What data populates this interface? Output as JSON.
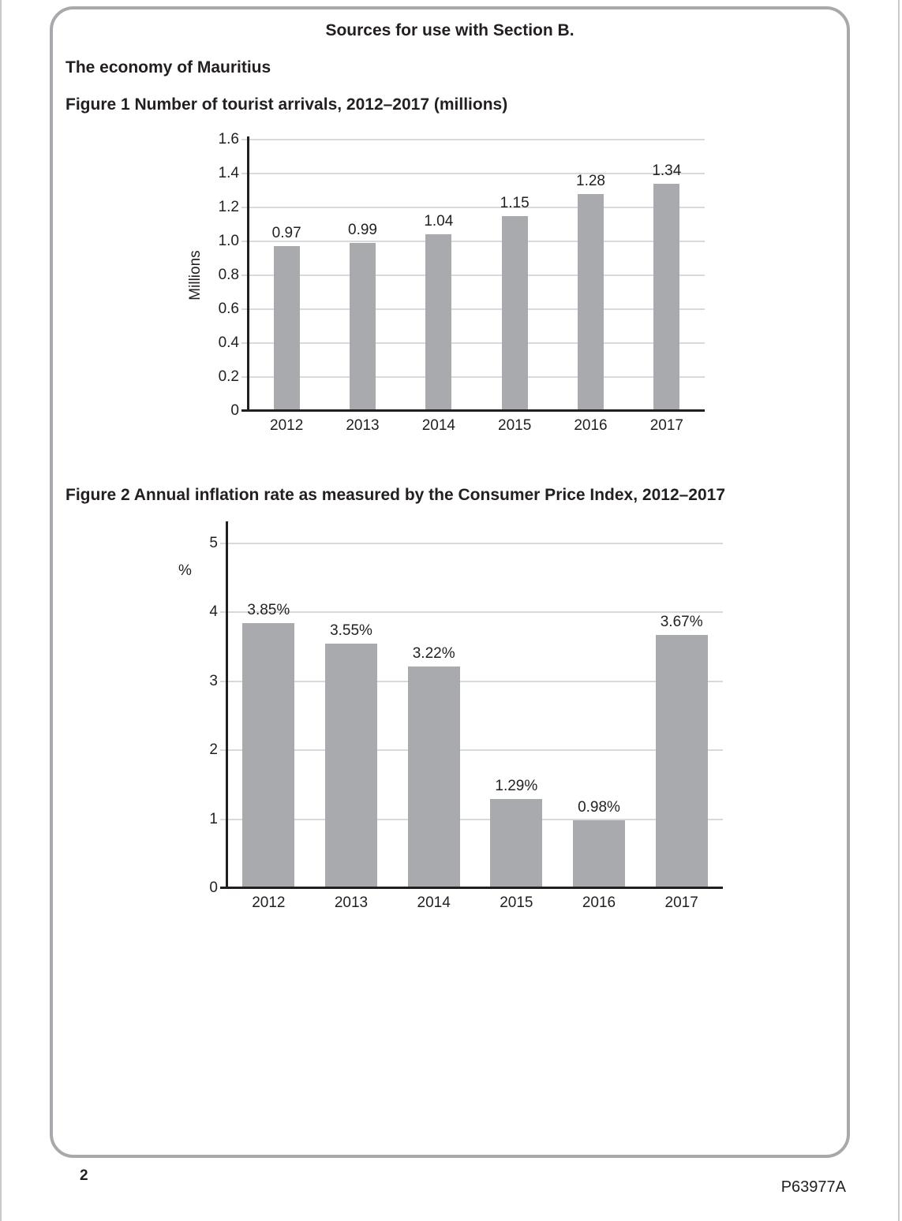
{
  "page": {
    "header_title": "Sources for use with Section B.",
    "subtitle": "The economy of Mauritius",
    "page_number": "2",
    "doc_code": "P63977A"
  },
  "colors": {
    "bar_fill": "#a8aaad",
    "gridline": "#d8d9da",
    "axis": "#231f20",
    "panel_border": "#a7a9ac",
    "text": "#231f20",
    "edge_line": "#c9cacb"
  },
  "chart_data": [
    {
      "type": "bar",
      "title": "Figure 1 Number of tourist arrivals, 2012–2017 (millions)",
      "categories": [
        "2012",
        "2013",
        "2014",
        "2015",
        "2016",
        "2017"
      ],
      "values": [
        0.97,
        0.99,
        1.04,
        1.15,
        1.28,
        1.34
      ],
      "data_labels": [
        "0.97",
        "0.99",
        "1.04",
        "1.15",
        "1.28",
        "1.34"
      ],
      "xlabel": "",
      "ylabel": "Millions",
      "ylim": [
        0,
        1.6
      ],
      "yticks": [
        0,
        0.2,
        0.4,
        0.6,
        0.8,
        1.0,
        1.2,
        1.4,
        1.6
      ],
      "ytick_labels": [
        "0",
        "0.2",
        "0.4",
        "0.6",
        "0.8",
        "1.0",
        "1.2",
        "1.4",
        "1.6"
      ],
      "grid": true,
      "legend": false,
      "bar_color": "#a8aaad"
    },
    {
      "type": "bar",
      "title": "Figure 2 Annual inflation rate as measured by the Consumer Price Index, 2012–2017",
      "categories": [
        "2012",
        "2013",
        "2014",
        "2015",
        "2016",
        "2017"
      ],
      "values": [
        3.85,
        3.55,
        3.22,
        1.29,
        0.98,
        3.67
      ],
      "data_labels": [
        "3.85%",
        "3.55%",
        "3.22%",
        "1.29%",
        "0.98%",
        "3.67%"
      ],
      "xlabel": "",
      "ylabel": "%",
      "ylim": [
        0,
        5
      ],
      "yticks": [
        0,
        1,
        2,
        3,
        4,
        5
      ],
      "ytick_labels": [
        "0",
        "1",
        "2",
        "3",
        "4",
        "5"
      ],
      "grid": true,
      "legend": false,
      "bar_color": "#a8aaad"
    }
  ]
}
